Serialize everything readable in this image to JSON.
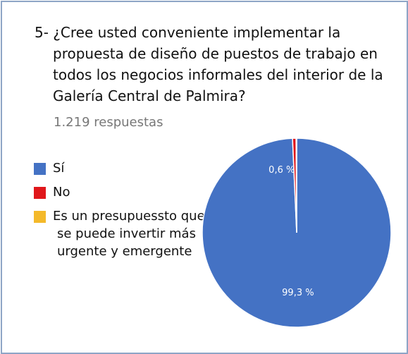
{
  "chart_data": {
    "type": "pie",
    "title": "5- ¿Cree usted conveniente implementar la propuesta de diseño de puestos de trabajo en todos los negocios informales del interior de la Galería Central de Palmira?",
    "subtitle": "1.219 respuestas",
    "categories": [
      "Sí",
      "No",
      "Es un presupuessto que se puede invertir más urgente y emergente"
    ],
    "values": [
      99.3,
      0.6,
      0.1
    ],
    "value_labels": [
      "99,3 %",
      "0,6 %",
      null
    ],
    "colors": [
      "#4472c4",
      "#e0171b",
      "#f4b92a"
    ],
    "legend": "left"
  }
}
